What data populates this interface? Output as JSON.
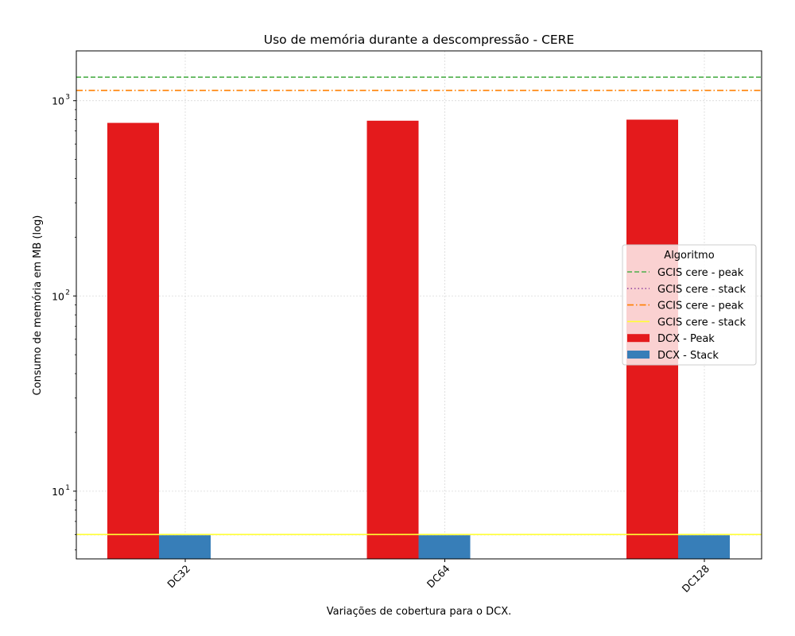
{
  "chart_data": {
    "type": "bar",
    "title": "Uso de memória durante a descompressão -  CERE",
    "xlabel": "Variações de cobertura para o DCX.",
    "ylabel": "Consumo de memória em MB (log)",
    "yscale": "log",
    "ylim": [
      4.5,
      1800
    ],
    "categories": [
      "DC32",
      "DC64",
      "DC128"
    ],
    "series": [
      {
        "name": "DCX - Peak",
        "color": "#e41a1c",
        "values": [
          770,
          790,
          800
        ]
      },
      {
        "name": "DCX - Stack",
        "color": "#377eb8",
        "values": [
          5.95,
          5.95,
          5.95
        ]
      }
    ],
    "hlines": [
      {
        "name": "GCIS cere - peak",
        "value": 1320,
        "color": "#4daf4a",
        "style": "dashed"
      },
      {
        "name": "GCIS cere - stack",
        "value": 6.0,
        "color": "#984ea3",
        "style": "dotted"
      },
      {
        "name": "GCIS cere - peak",
        "value": 1130,
        "color": "#ff7f00",
        "style": "dashdot"
      },
      {
        "name": "GCIS cere - stack",
        "value": 6.0,
        "color": "#ffff33",
        "style": "solid"
      }
    ],
    "ytick_labels": [
      {
        "value": 10,
        "base": "10",
        "exp": "1"
      },
      {
        "value": 100,
        "base": "10",
        "exp": "2"
      },
      {
        "value": 1000,
        "base": "10",
        "exp": "3"
      }
    ],
    "legend": {
      "title": "Algoritmo",
      "placement": "center-right",
      "entries": [
        "GCIS cere - peak",
        "GCIS cere - stack",
        "GCIS cere - peak",
        "GCIS cere - stack",
        "DCX - Peak",
        "DCX - Stack"
      ]
    },
    "grid": true
  }
}
